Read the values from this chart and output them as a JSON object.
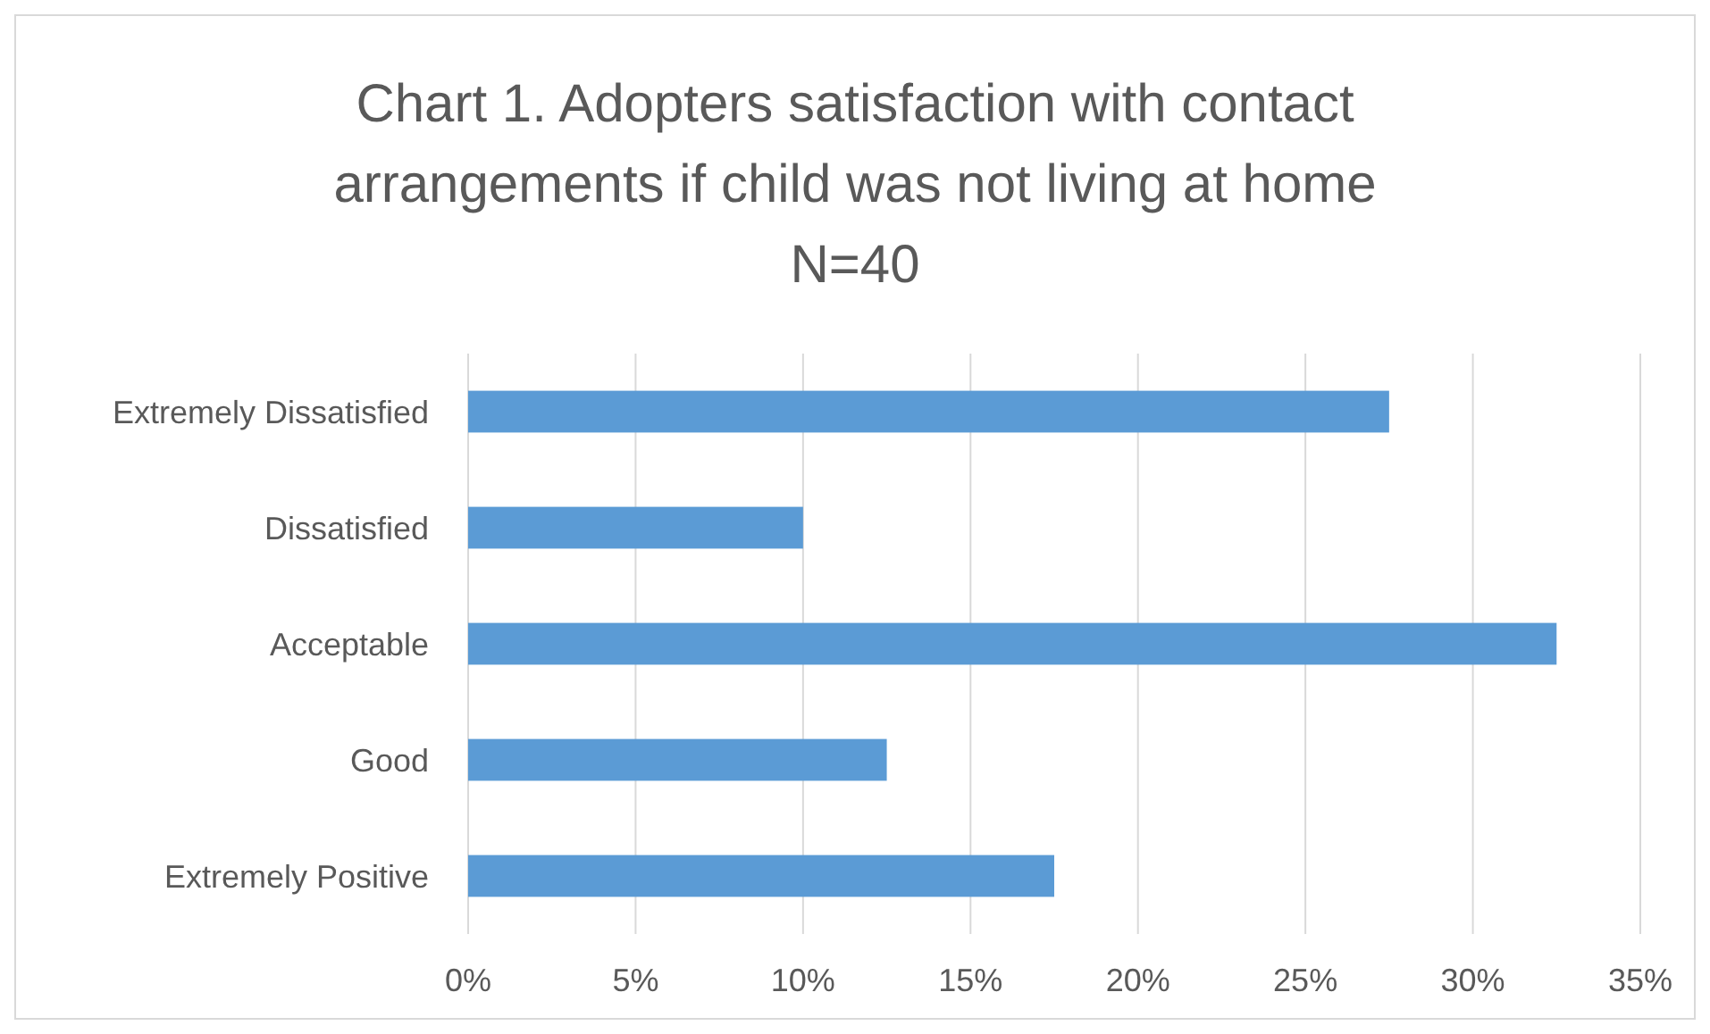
{
  "chart_data": {
    "type": "bar",
    "orientation": "horizontal",
    "title": "Chart 1. Adopters satisfaction with contact arrangements if child was not living at home N=40",
    "categories": [
      "Extremely Dissatisfied",
      "Dissatisfied",
      "Acceptable",
      "Good",
      "Extremely Positive"
    ],
    "values": [
      27.5,
      10,
      32.5,
      12.5,
      17.5
    ],
    "color": "#5b9bd5",
    "xlim": [
      0,
      35
    ],
    "xticks": [
      {
        "value": 0,
        "label": "0%"
      },
      {
        "value": 5,
        "label": "5%"
      },
      {
        "value": 10,
        "label": "10%"
      },
      {
        "value": 15,
        "label": "15%"
      },
      {
        "value": 20,
        "label": "20%"
      },
      {
        "value": 25,
        "label": "25%"
      },
      {
        "value": 30,
        "label": "30%"
      },
      {
        "value": 35,
        "label": "35%"
      }
    ],
    "grid": "x"
  }
}
